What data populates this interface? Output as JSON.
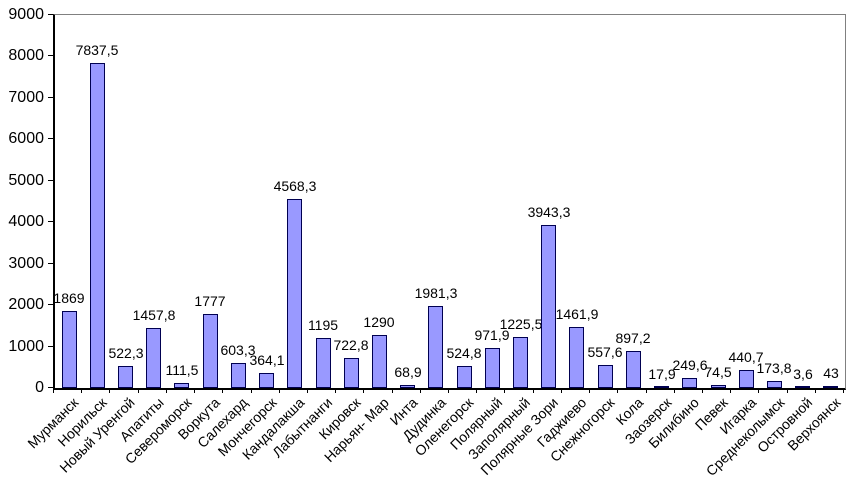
{
  "chart_data": {
    "type": "bar",
    "title": "",
    "xlabel": "",
    "ylabel": "",
    "categories": [
      "Мурманск",
      "Норильск",
      "Новый Уренгой",
      "Апатиты",
      "Североморск",
      "Воркута",
      "Салехард",
      "Мончегорск",
      "Кандалакша",
      "Лабытнанги",
      "Кировск",
      "Нарьян- Мар",
      "Инта",
      "Дудинка",
      "Оленегорск",
      "Полярный",
      "Заполярный",
      "Полярные Зори",
      "Гаджиево",
      "Снежногорск",
      "Кола",
      "Заозерск",
      "Билибино",
      "Певек",
      "Игарка",
      "Среднеколымск",
      "Островной",
      "Верхоянск"
    ],
    "values": [
      1869,
      7837.5,
      522.3,
      1457.8,
      111.5,
      1777,
      603.3,
      364.1,
      4568.3,
      1195,
      722.8,
      1290,
      68.9,
      1981.3,
      524.8,
      971.9,
      1225.5,
      3943.3,
      1461.9,
      557.6,
      897.2,
      17.9,
      249.6,
      74.5,
      440.7,
      173.8,
      3.6,
      43
    ],
    "value_labels": [
      "1869",
      "7837,5",
      "522,3",
      "1457,8",
      "111,5",
      "1777",
      "603,3",
      "364,1",
      "4568,3",
      "1195",
      "722,8",
      "1290",
      "68,9",
      "1981,3",
      "524,8",
      "971,9",
      "1225,5",
      "3943,3",
      "1461,9",
      "557,6",
      "897,2",
      "17,9",
      "249,6",
      "74,5",
      "440,7",
      "173,8",
      "3,6",
      "43"
    ],
    "ylim": [
      0,
      9000
    ],
    "ytick_step": 1000,
    "ytick_labels": [
      "0",
      "1000",
      "2000",
      "3000",
      "4000",
      "5000",
      "6000",
      "7000",
      "8000",
      "9000"
    ],
    "grid": false,
    "legend": false,
    "bar_fill_color": "#9999FF",
    "bar_border_color": "#000050",
    "axis_color": "#000000",
    "plot_border_color": "#808080",
    "background_color": "#FFFFFF"
  }
}
